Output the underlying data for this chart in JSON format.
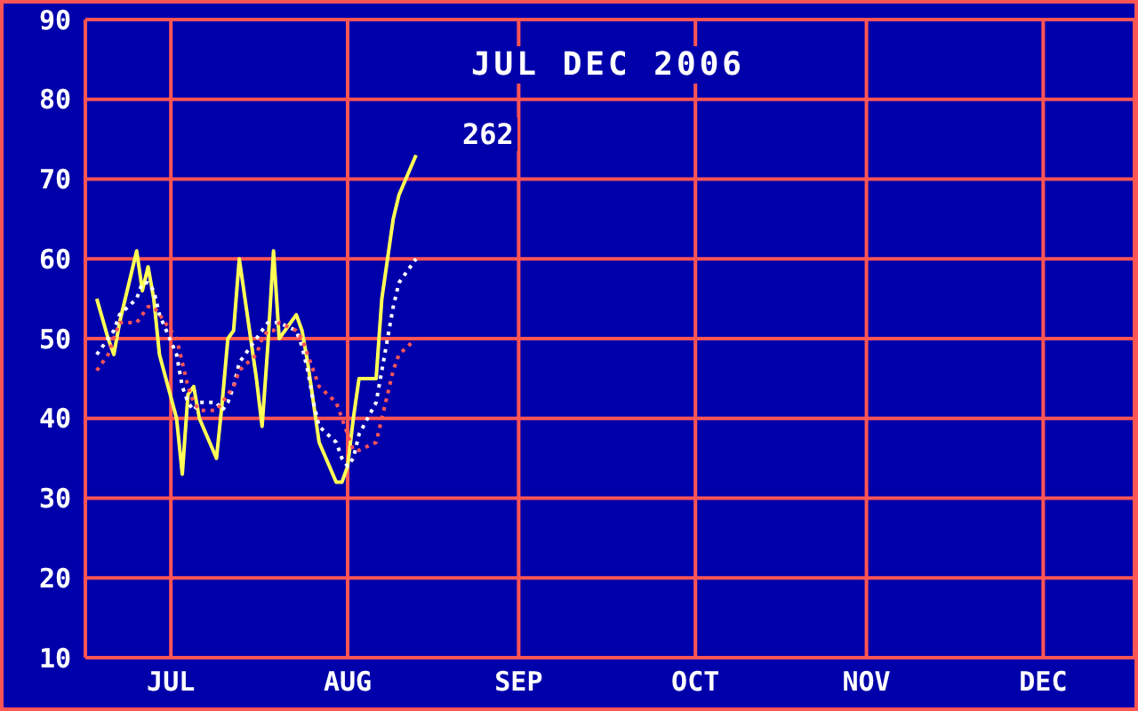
{
  "chart_data": {
    "type": "line",
    "title": "JUL DEC 2006",
    "annotations": [
      "262"
    ],
    "x": [
      "2006-07-03",
      "2006-07-05",
      "2006-07-06",
      "2006-07-07",
      "2006-07-10",
      "2006-07-11",
      "2006-07-12",
      "2006-07-13",
      "2006-07-14",
      "2006-07-17",
      "2006-07-18",
      "2006-07-19",
      "2006-07-20",
      "2006-07-21",
      "2006-07-24",
      "2006-07-25",
      "2006-07-26",
      "2006-07-27",
      "2006-07-28",
      "2006-07-31",
      "2006-08-01",
      "2006-08-02",
      "2006-08-03",
      "2006-08-04",
      "2006-08-07",
      "2006-08-08",
      "2006-08-09",
      "2006-08-10",
      "2006-08-11",
      "2006-08-14",
      "2006-08-15",
      "2006-08-16",
      "2006-08-17",
      "2006-08-18",
      "2006-08-21",
      "2006-08-22",
      "2006-08-23",
      "2006-08-24",
      "2006-08-25",
      "2006-08-28"
    ],
    "xlim": [
      "2006-07-01",
      "2007-01-01"
    ],
    "xticks": [
      {
        "value": "2006-07-16",
        "label": "JUL"
      },
      {
        "value": "2006-08-16",
        "label": "AUG"
      },
      {
        "value": "2006-09-15",
        "label": "SEP"
      },
      {
        "value": "2006-10-16",
        "label": "OCT"
      },
      {
        "value": "2006-11-15",
        "label": "NOV"
      },
      {
        "value": "2006-12-16",
        "label": "DEC"
      }
    ],
    "ylim": [
      10,
      90
    ],
    "yticks": [
      10,
      20,
      30,
      40,
      50,
      60,
      70,
      80,
      90
    ],
    "grid": true,
    "marker": "none",
    "series": [
      {
        "color": "#ffff55",
        "line_style": "solid",
        "values": [
          55,
          50,
          48,
          52,
          61,
          56,
          59,
          55,
          48,
          40,
          33,
          43,
          44,
          40,
          35,
          42,
          50,
          51,
          60,
          45,
          39,
          49,
          61,
          50,
          53,
          51,
          47,
          42,
          37,
          32,
          32,
          34,
          40,
          45,
          45,
          55,
          60,
          65,
          68,
          73
        ]
      },
      {
        "color": "#ffffff",
        "line_style": "dotted",
        "values": [
          48,
          50,
          51,
          53,
          55,
          57,
          57,
          56,
          53,
          48,
          44,
          42,
          41,
          42,
          42,
          41,
          42,
          44,
          47,
          50,
          51,
          52,
          52,
          52,
          51,
          49,
          46,
          42,
          39,
          37,
          35,
          34,
          35,
          38,
          42,
          46,
          50,
          54,
          57,
          60
        ]
      },
      {
        "color": "#ff5555",
        "line_style": "dotted",
        "values": [
          46,
          48,
          50,
          52,
          52,
          53,
          54,
          54,
          53,
          50,
          47,
          44,
          42,
          41,
          41,
          42,
          43,
          44,
          46,
          48,
          50,
          51,
          51,
          52,
          51,
          50,
          48,
          46,
          44,
          42,
          40,
          38,
          36,
          36,
          37,
          40,
          43,
          46,
          48,
          50
        ]
      }
    ]
  }
}
